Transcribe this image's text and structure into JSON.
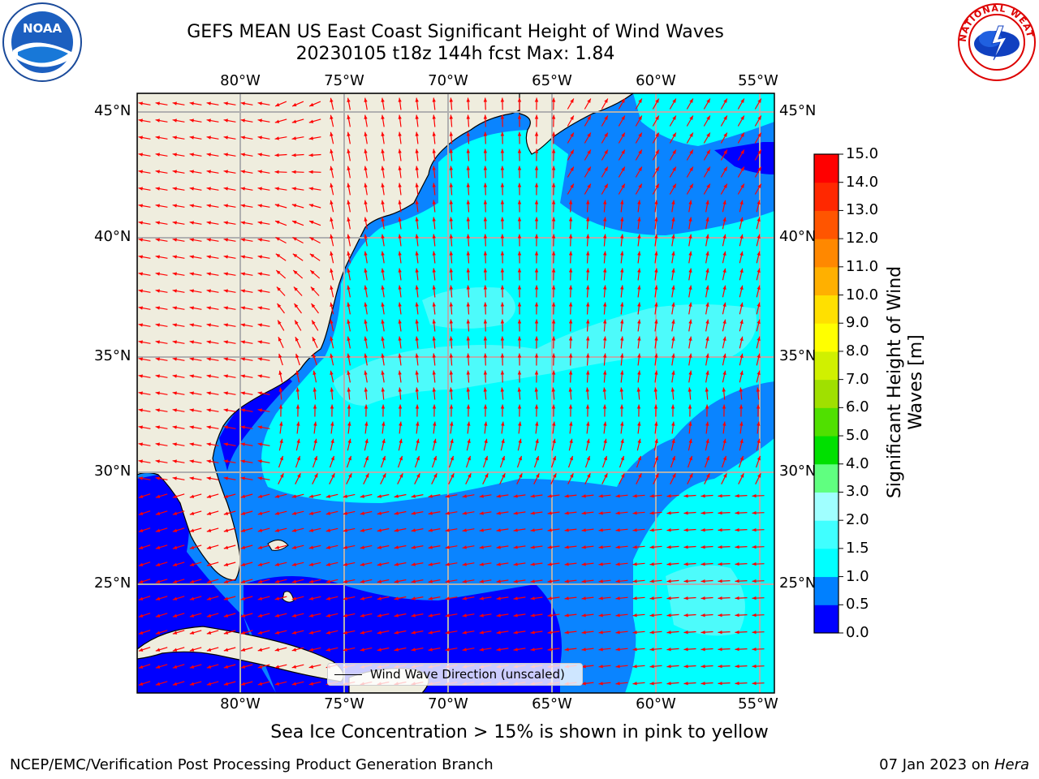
{
  "title_line1": "GEFS MEAN US East Coast Significant Height of Wind Waves",
  "title_line2": "20230105 t18z 144h fcst   Max: 1.84",
  "map": {
    "lon_ticks": [
      "80°W",
      "75°W",
      "70°W",
      "65°W",
      "60°W",
      "55°W"
    ],
    "lat_ticks": [
      "45°N",
      "40°N",
      "35°N",
      "30°N",
      "25°N"
    ],
    "lon_range": [
      -85,
      -54.3
    ],
    "lat_range": [
      20.4,
      45.8
    ]
  },
  "colorbar": {
    "label": "Significant Height of Wind Waves [m]",
    "ticks": [
      "0.0",
      "0.5",
      "1.0",
      "1.5",
      "2.0",
      "3.0",
      "4.0",
      "5.0",
      "6.0",
      "7.0",
      "8.0",
      "9.0",
      "10.0",
      "11.0",
      "12.0",
      "13.0",
      "14.0",
      "15.0"
    ],
    "colors": [
      "#0000ff",
      "#0080ff",
      "#00ffff",
      "#40ffff",
      "#a0ffff",
      "#60ff80",
      "#00e000",
      "#50e000",
      "#a0e000",
      "#d0f000",
      "#ffff00",
      "#ffe000",
      "#ffb000",
      "#ff8800",
      "#ff5500",
      "#ff2800",
      "#ff0000"
    ]
  },
  "legend_label": "Wind Wave Direction (unscaled)",
  "note": "Sea Ice Concentration > 15% is shown in pink to yellow",
  "footer_left": "NCEP/EMC/Verification Post Processing Product Generation Branch",
  "footer_right_date": "07 Jan 2023 on",
  "footer_right_host": "Hera",
  "logo_left_name": "NOAA",
  "logo_right_text": "NATIONAL WEATHER SERVICE",
  "colors": {
    "land": "#efedde",
    "arrow": "#ff0000",
    "grid": "#b0b0b0"
  }
}
